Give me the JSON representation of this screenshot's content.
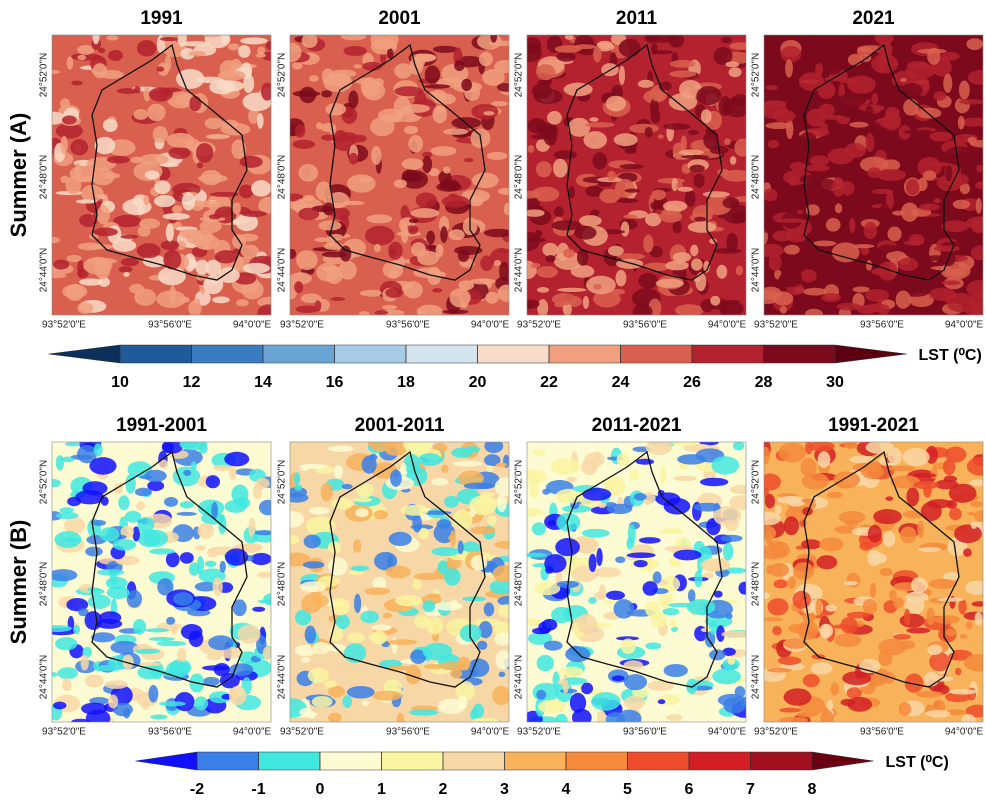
{
  "rows": [
    {
      "label": "Summer (A)",
      "panels": [
        {
          "title": "1991"
        },
        {
          "title": "2001"
        },
        {
          "title": "2011"
        },
        {
          "title": "2021"
        }
      ]
    },
    {
      "label": "Summer (B)",
      "panels": [
        {
          "title": "1991-2001"
        },
        {
          "title": "2001-2011"
        },
        {
          "title": "2011-2021"
        },
        {
          "title": "1991-2021"
        }
      ]
    }
  ],
  "lat_ticks": [
    "24°52'0\"N",
    "24°48'0\"N",
    "24°44'0\"N"
  ],
  "lon_ticks": [
    "93°52'0\"E",
    "93°56'0\"E",
    "94°0'0\"E"
  ],
  "colorbars": [
    {
      "label": "LST (⁰C)",
      "ticks": [
        10,
        12,
        14,
        16,
        18,
        20,
        22,
        24,
        26,
        28,
        30
      ],
      "colors": [
        "#1f5a9a",
        "#3a7cc0",
        "#6aa4d4",
        "#a6cbe4",
        "#d4e4ef",
        "#f8dcc8",
        "#f0a07f",
        "#d9604e",
        "#b3222e",
        "#7c0a1c"
      ],
      "extend_colors": [
        "#0d2f5c",
        "#5a0010"
      ]
    },
    {
      "label": "LST (⁰C)",
      "ticks": [
        -2,
        -1,
        0,
        1,
        2,
        3,
        4,
        5,
        6,
        7,
        8
      ],
      "colors": [
        "#3a7fe8",
        "#40e8e0",
        "#fdfbd2",
        "#faf5a0",
        "#f8d7a6",
        "#f8b25a",
        "#f58a3c",
        "#ee4c2c",
        "#d21e24",
        "#a0101e"
      ],
      "extend_colors": [
        "#1010ff",
        "#6a0010"
      ]
    }
  ]
}
